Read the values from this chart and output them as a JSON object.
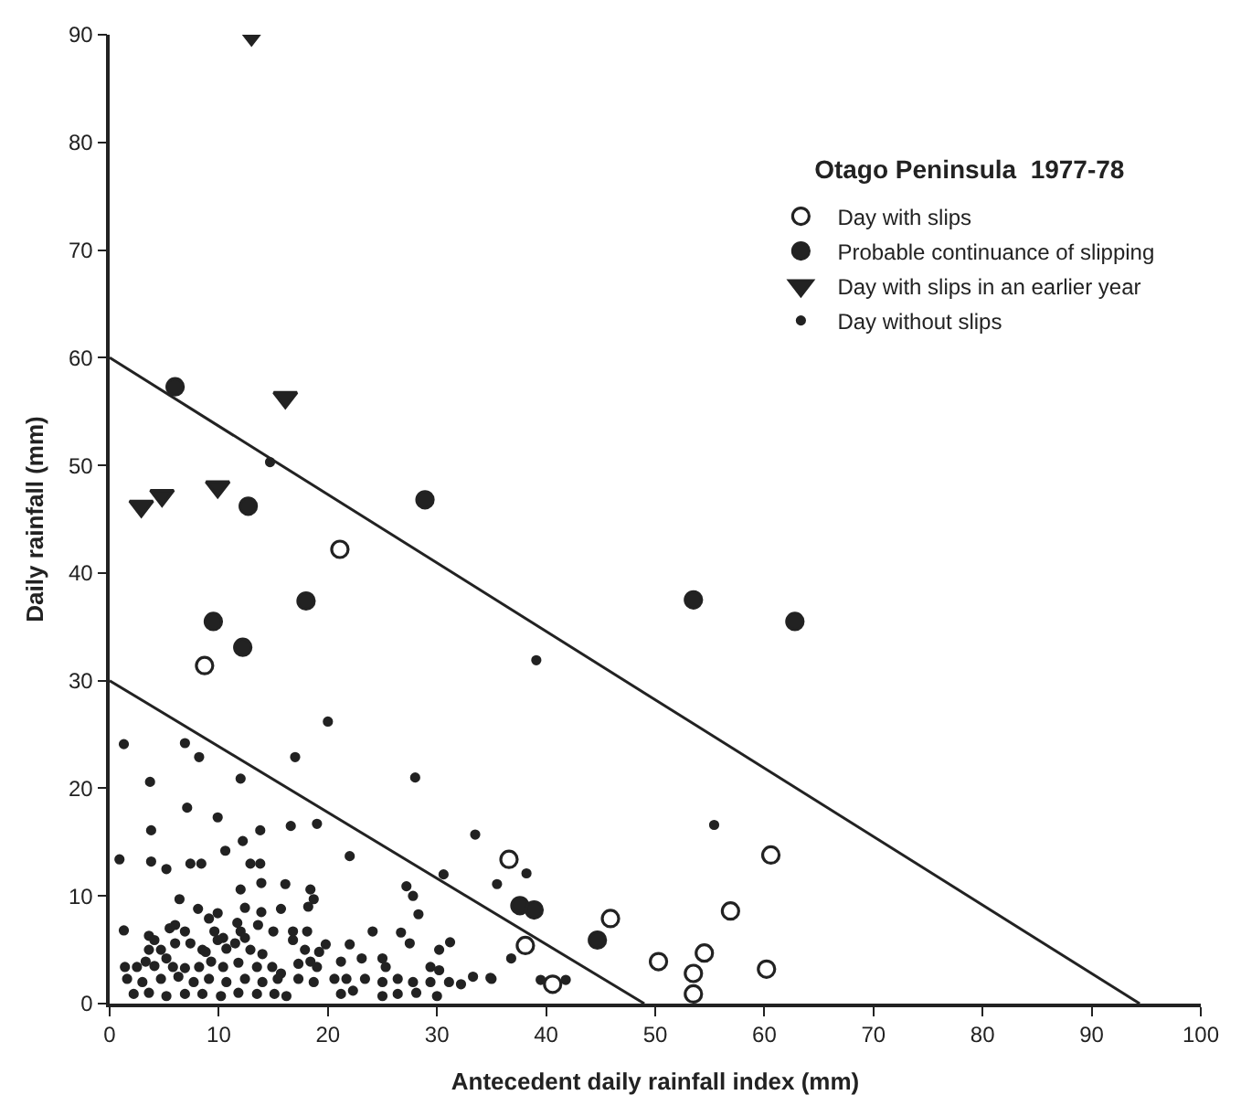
{
  "chart_data": {
    "type": "scatter",
    "title": "Otago Peninsula  1977-78",
    "xlabel": "Antecedent daily rainfall index (mm)",
    "ylabel": "Daily rainfall (mm)",
    "xlim": [
      0,
      100
    ],
    "xticks": [
      0,
      10,
      20,
      30,
      40,
      50,
      60,
      70,
      80,
      90,
      100
    ],
    "ylim": [
      0,
      90
    ],
    "yticks": [
      0,
      10,
      20,
      30,
      40,
      50,
      60,
      70,
      80,
      90
    ],
    "grid": false,
    "legend": "top right",
    "series": [
      {
        "name": "Day with slips",
        "color": "#222222",
        "marker": "circle-open",
        "x": [
          8.7,
          21.1,
          36.6,
          45.9,
          38.1,
          40.6,
          50.3,
          53.5,
          53.5,
          54.5,
          56.9,
          60.6,
          60.2
        ],
        "values": [
          31.4,
          42.2,
          13.4,
          7.9,
          5.4,
          1.8,
          3.9,
          2.8,
          0.9,
          4.7,
          8.6,
          13.8,
          3.2
        ]
      },
      {
        "name": "Probable continuance of slipping",
        "color": "#222222",
        "marker": "circle",
        "x": [
          6.0,
          12.7,
          28.9,
          18.0,
          9.5,
          12.2,
          53.5,
          62.8,
          37.6,
          38.9,
          44.7
        ],
        "values": [
          57.3,
          46.2,
          46.8,
          37.4,
          35.5,
          33.1,
          37.5,
          35.5,
          9.1,
          8.7,
          5.9
        ]
      },
      {
        "name": "Day with slips in an earlier year",
        "color": "#222222",
        "marker": "triangle-down",
        "x": [
          13.0,
          16.1,
          2.9,
          4.8,
          9.9
        ],
        "values": [
          90,
          56.3,
          46.2,
          47.2,
          48.0
        ]
      },
      {
        "name": "Day without slips",
        "color": "#222222",
        "marker": "point",
        "x": [
          14.7,
          39.1,
          28.0,
          33.5,
          38.2,
          35.5,
          30.6,
          36.8,
          39.5,
          41.8,
          35.0,
          55.4,
          20.0,
          1.3,
          6.9,
          8.2,
          17.0,
          3.7,
          12.0,
          7.1,
          9.9,
          3.8,
          13.8,
          12.2,
          16.6,
          19.0,
          10.6,
          0.9,
          3.8,
          5.2,
          7.4,
          8.4,
          12.9,
          13.8,
          22.0,
          12.0,
          13.9,
          16.1,
          6.4,
          18.4,
          18.7,
          27.2,
          27.8,
          28.3,
          8.1,
          9.9,
          9.1,
          12.4,
          13.9,
          15.7,
          18.2,
          1.3,
          3.6,
          6.0,
          6.9,
          11.7,
          12.0,
          13.6,
          15.0,
          16.8,
          18.1,
          24.1,
          26.7,
          27.5,
          31.2,
          30.2,
          3.6,
          4.7,
          7.4,
          8.5,
          9.9,
          10.7,
          12.9,
          14.0,
          16.8,
          17.9,
          19.8,
          19.2,
          22.0,
          23.1,
          25.0,
          25.3,
          21.2,
          29.4,
          30.2,
          1.4,
          2.5,
          4.1,
          5.8,
          6.9,
          8.2,
          9.3,
          10.4,
          11.8,
          13.5,
          14.9,
          15.7,
          17.3,
          18.4,
          19.0,
          1.6,
          3.0,
          4.7,
          6.3,
          7.7,
          9.1,
          10.7,
          12.4,
          14.0,
          15.4,
          17.3,
          18.7,
          20.6,
          21.7,
          23.4,
          25.0,
          26.4,
          27.8,
          29.4,
          31.1,
          32.2,
          33.3,
          34.9,
          2.2,
          3.6,
          5.2,
          6.9,
          8.5,
          10.2,
          11.8,
          13.5,
          15.1,
          16.2,
          21.2,
          22.3,
          25.0,
          26.4,
          28.1,
          30.0,
          3.3,
          5.2,
          6.0,
          9.6,
          10.4,
          11.5,
          12.4,
          4.1,
          5.5,
          8.8
        ],
        "values": [
          50.3,
          31.9,
          21.0,
          15.7,
          12.1,
          11.1,
          12.0,
          4.2,
          2.2,
          2.2,
          2.3,
          16.6,
          26.2,
          24.1,
          24.2,
          22.9,
          22.9,
          20.6,
          20.9,
          18.2,
          17.3,
          16.1,
          16.1,
          15.1,
          16.5,
          16.7,
          14.2,
          13.4,
          13.2,
          12.5,
          13.0,
          13.0,
          13.0,
          13.0,
          13.7,
          10.6,
          11.2,
          11.1,
          9.7,
          10.6,
          9.7,
          10.9,
          10.0,
          8.3,
          8.8,
          8.4,
          7.9,
          8.9,
          8.5,
          8.8,
          9.0,
          6.8,
          6.3,
          7.3,
          6.7,
          7.5,
          6.7,
          7.3,
          6.7,
          6.7,
          6.7,
          6.7,
          6.6,
          5.6,
          5.7,
          5.0,
          5.0,
          5.0,
          5.6,
          5.0,
          5.9,
          5.1,
          5.0,
          4.6,
          5.9,
          5.0,
          5.5,
          4.8,
          5.5,
          4.2,
          4.2,
          3.4,
          3.9,
          3.4,
          3.1,
          3.4,
          3.4,
          3.5,
          3.4,
          3.3,
          3.4,
          3.9,
          3.4,
          3.8,
          3.4,
          3.4,
          2.8,
          3.7,
          3.9,
          3.4,
          2.3,
          2.0,
          2.3,
          2.5,
          2.0,
          2.3,
          2.0,
          2.3,
          2.0,
          2.3,
          2.3,
          2.0,
          2.3,
          2.3,
          2.3,
          2.0,
          2.3,
          2.0,
          2.0,
          2.0,
          1.8,
          2.5,
          2.4,
          0.9,
          1.0,
          0.7,
          0.9,
          0.9,
          0.7,
          1.0,
          0.9,
          0.9,
          0.7,
          0.9,
          1.2,
          0.7,
          0.9,
          1.0,
          0.7,
          3.9,
          4.2,
          5.6,
          6.7,
          6.1,
          5.6,
          6.1,
          5.9,
          7.0,
          4.8
        ]
      },
      {
        "type": "line",
        "color": "#222222",
        "line_style": "solid",
        "x": [
          0,
          94.4
        ],
        "values": [
          60.0,
          0
        ]
      },
      {
        "type": "line",
        "color": "#222222",
        "line_style": "solid",
        "x": [
          0,
          49.0
        ],
        "values": [
          30.0,
          0
        ]
      }
    ]
  }
}
